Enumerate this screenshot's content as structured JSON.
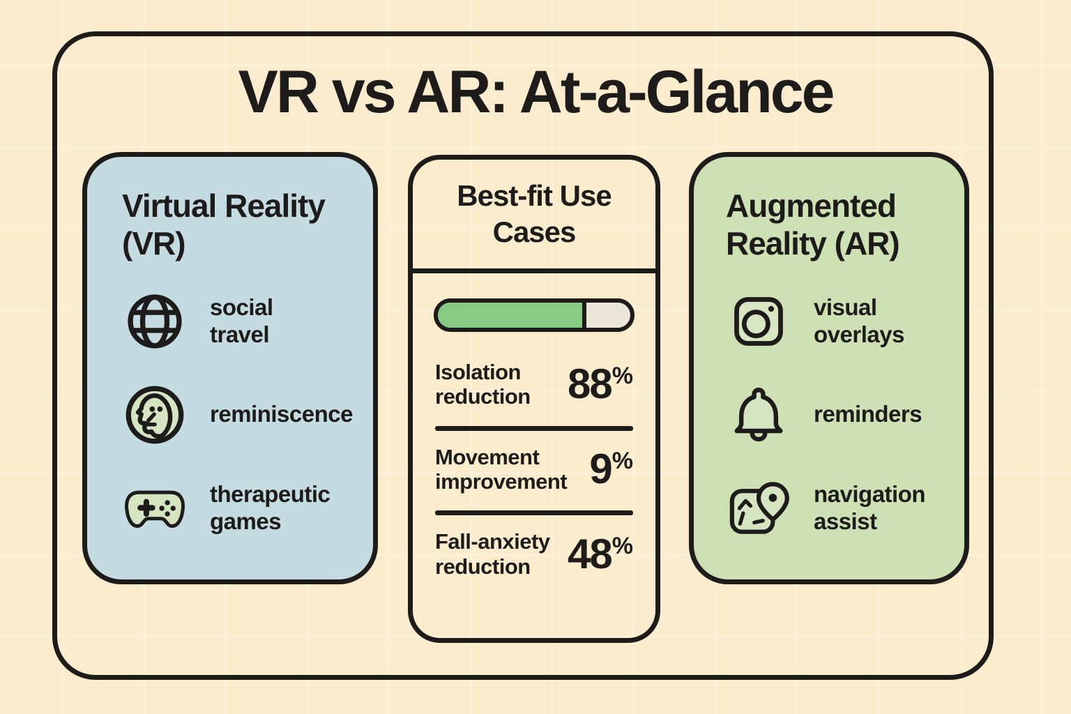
{
  "title": "VR vs AR: At-a-Glance",
  "panels": {
    "vr": {
      "title": "Virtual Reality (VR)",
      "items": [
        {
          "icon": "globe-icon",
          "label": "social travel"
        },
        {
          "icon": "face-profile-icon",
          "label": "reminiscence"
        },
        {
          "icon": "gamepad-icon",
          "label": "therapeutic games"
        }
      ]
    },
    "usecases": {
      "title": "Best-fit Use Cases",
      "progress_bar": {
        "fill_percent": 77
      },
      "stats": [
        {
          "label": "Isolation reduction",
          "value": "88",
          "unit": "%"
        },
        {
          "label": "Movement improvement",
          "value": "9",
          "unit": "%"
        },
        {
          "label": "Fall-anxiety reduction",
          "value": "48",
          "unit": "%"
        }
      ]
    },
    "ar": {
      "title": "Augmented Reality (AR)",
      "items": [
        {
          "icon": "camera-icon",
          "label": "visual overlays"
        },
        {
          "icon": "bell-icon",
          "label": "reminders"
        },
        {
          "icon": "map-pin-icon",
          "label": "navigation assist"
        }
      ]
    }
  },
  "colors": {
    "background": "#fbeccd",
    "ink": "#1d1c1a",
    "vr_panel": "#c4dce1",
    "ar_panel": "#cde1b5",
    "icon_fill": "#d5e4c1",
    "progress_fill": "#86ca83",
    "progress_track": "#eae7d8"
  }
}
